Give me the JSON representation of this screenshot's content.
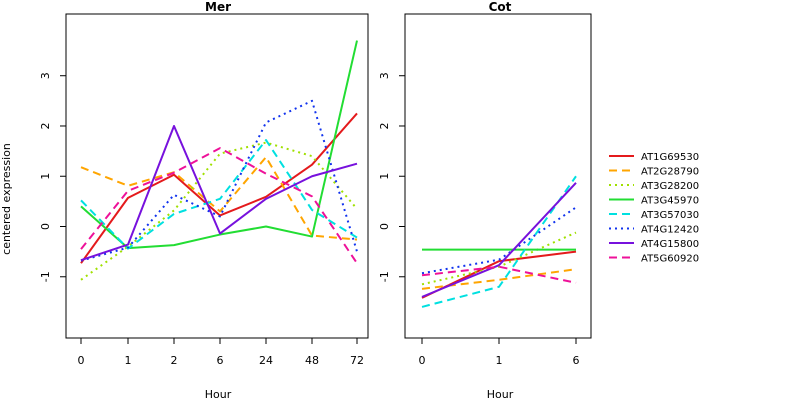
{
  "chart_data": [
    {
      "type": "line",
      "title": "Mer",
      "xlabel": "Hour",
      "ylabel": "centered expression",
      "categories": [
        "0",
        "1",
        "2",
        "6",
        "24",
        "48",
        "72"
      ],
      "ylim": [
        -1.9,
        3.85
      ],
      "yticks": [
        -1,
        0,
        1,
        2,
        3
      ],
      "series": [
        {
          "name": "AT1G69530",
          "values": [
            -0.73,
            0.57,
            1.03,
            0.22,
            0.59,
            1.23,
            2.25
          ]
        },
        {
          "name": "AT2G28790",
          "values": [
            1.18,
            0.81,
            1.08,
            0.3,
            1.38,
            -0.18,
            -0.26
          ]
        },
        {
          "name": "AT3G28200",
          "values": [
            -1.06,
            -0.4,
            0.32,
            1.45,
            1.67,
            1.4,
            0.35
          ]
        },
        {
          "name": "AT3G45970",
          "values": [
            0.4,
            -0.43,
            -0.37,
            -0.16,
            0.0,
            -0.2,
            3.7
          ]
        },
        {
          "name": "AT3G57030",
          "values": [
            0.52,
            -0.44,
            0.25,
            0.55,
            1.72,
            0.33,
            -0.22
          ]
        },
        {
          "name": "AT4G12420",
          "values": [
            -0.68,
            -0.42,
            0.63,
            0.2,
            2.07,
            2.5,
            -0.5
          ]
        },
        {
          "name": "AT4G15800",
          "values": [
            -0.67,
            -0.36,
            2.0,
            -0.14,
            0.55,
            1.0,
            1.25
          ]
        },
        {
          "name": "AT5G60920",
          "values": [
            -0.45,
            0.71,
            1.07,
            1.56,
            1.05,
            0.6,
            -0.73
          ]
        }
      ]
    },
    {
      "type": "line",
      "title": "Cot",
      "xlabel": "Hour",
      "categories": [
        "0",
        "1",
        "6"
      ],
      "ylim": [
        -1.9,
        3.85
      ],
      "yticks": [
        -1,
        0,
        1,
        2,
        3
      ],
      "series": [
        {
          "name": "AT1G69530",
          "values": [
            -1.42,
            -0.69,
            -0.5
          ]
        },
        {
          "name": "AT2G28790",
          "values": [
            -1.24,
            -1.06,
            -0.85
          ]
        },
        {
          "name": "AT3G28200",
          "values": [
            -1.15,
            -0.8,
            -0.12
          ]
        },
        {
          "name": "AT3G45970",
          "values": [
            -0.46,
            -0.46,
            -0.46
          ]
        },
        {
          "name": "AT3G57030",
          "values": [
            -1.6,
            -1.2,
            1.0
          ]
        },
        {
          "name": "AT4G12420",
          "values": [
            -0.93,
            -0.66,
            0.38
          ]
        },
        {
          "name": "AT4G15800",
          "values": [
            -1.4,
            -0.77,
            0.87
          ]
        },
        {
          "name": "AT5G60920",
          "values": [
            -0.97,
            -0.8,
            -1.12
          ]
        }
      ]
    }
  ],
  "legend": {
    "placement": "right",
    "entries": [
      {
        "label": "AT1G69530",
        "color": "#e41a1c",
        "dash": "solid"
      },
      {
        "label": "AT2G28790",
        "color": "#ffa500",
        "dash": "dashed"
      },
      {
        "label": "AT3G28200",
        "color": "#a0e000",
        "dash": "dotted"
      },
      {
        "label": "AT3G45970",
        "color": "#22dd33",
        "dash": "solid"
      },
      {
        "label": "AT3G57030",
        "color": "#00e0e0",
        "dash": "dashed"
      },
      {
        "label": "AT4G12420",
        "color": "#1133ee",
        "dash": "dotted"
      },
      {
        "label": "AT4G15800",
        "color": "#7711dd",
        "dash": "solid"
      },
      {
        "label": "AT5G60920",
        "color": "#ee1199",
        "dash": "dashed"
      }
    ]
  }
}
